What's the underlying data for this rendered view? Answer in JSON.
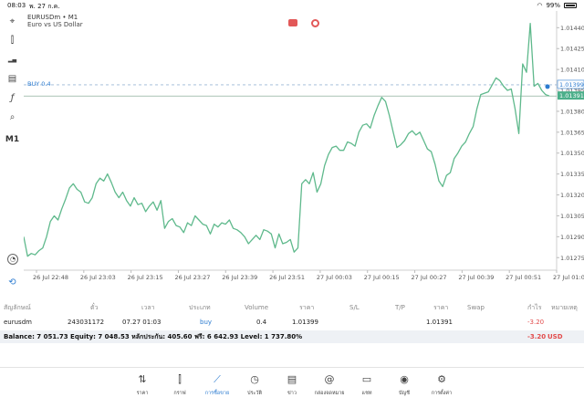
{
  "status": {
    "time": "08:03",
    "date": "พ. 27 ก.ค.",
    "battery": "99%"
  },
  "toolbar": [
    {
      "name": "crosshair-icon",
      "glyph": "⌖"
    },
    {
      "name": "candlestick-icon",
      "glyph": "⫿"
    },
    {
      "name": "indicators-icon",
      "glyph": "▂▄"
    },
    {
      "name": "objects-icon",
      "glyph": "▤"
    },
    {
      "name": "function-icon",
      "glyph": "ƒ"
    },
    {
      "name": "shapes-icon",
      "glyph": "⌕"
    },
    {
      "name": "timeframe-label",
      "glyph": "M1"
    }
  ],
  "chart": {
    "symbol": "EURUSDm • M1",
    "description": "Euro vs US Dollar",
    "buy_label": "BUY 0.4",
    "buy_price": "1.01399",
    "current_price": "1.01391",
    "colors": {
      "line": "#5fb98c",
      "buy": "#2b7bd0",
      "price": "#4caf8a"
    },
    "y_ticks": [
      "1.01440",
      "1.01425",
      "1.01410",
      "1.01395",
      "1.01380",
      "1.01365",
      "1.01350",
      "1.01335",
      "1.01320",
      "1.01305",
      "1.01290",
      "1.01275"
    ],
    "x_ticks": [
      "26 Jul 22:48",
      "26 Jul 23:03",
      "26 Jul 23:15",
      "26 Jul 23:27",
      "26 Jul 23:39",
      "26 Jul 23:51",
      "27 Jul 00:03",
      "27 Jul 00:15",
      "27 Jul 00:27",
      "27 Jul 00:39",
      "27 Jul 00:51",
      "27 Jul 01:03"
    ]
  },
  "chart_data": {
    "type": "line",
    "title": "EURUSDm • M1",
    "ylim": [
      1.01266,
      1.01452
    ],
    "xlabel": "",
    "ylabel": "",
    "values": [
      1.0129,
      1.01276,
      1.01278,
      1.01277,
      1.0128,
      1.01282,
      1.0129,
      1.01301,
      1.01305,
      1.01302,
      1.0131,
      1.01317,
      1.01325,
      1.01328,
      1.01324,
      1.01322,
      1.01315,
      1.01314,
      1.01318,
      1.01328,
      1.01332,
      1.0133,
      1.01335,
      1.01329,
      1.01322,
      1.01318,
      1.01322,
      1.01316,
      1.01312,
      1.01318,
      1.01313,
      1.01314,
      1.01308,
      1.01312,
      1.01315,
      1.01309,
      1.01316,
      1.01296,
      1.01301,
      1.01303,
      1.01298,
      1.01297,
      1.01293,
      1.013,
      1.01298,
      1.01305,
      1.01302,
      1.01299,
      1.01298,
      1.01292,
      1.01299,
      1.01297,
      1.013,
      1.01299,
      1.01302,
      1.01296,
      1.01295,
      1.01293,
      1.0129,
      1.01285,
      1.01288,
      1.01291,
      1.01288,
      1.01295,
      1.01294,
      1.01292,
      1.01282,
      1.01292,
      1.01285,
      1.01286,
      1.01288,
      1.01279,
      1.01282,
      1.01328,
      1.01331,
      1.01328,
      1.01336,
      1.01322,
      1.01328,
      1.01341,
      1.01349,
      1.01354,
      1.01355,
      1.01352,
      1.01352,
      1.01358,
      1.01357,
      1.01355,
      1.01365,
      1.0137,
      1.01371,
      1.01368,
      1.01377,
      1.01384,
      1.0139,
      1.01387,
      1.01377,
      1.01365,
      1.01354,
      1.01356,
      1.01359,
      1.01364,
      1.01366,
      1.01363,
      1.01365,
      1.01359,
      1.01353,
      1.01351,
      1.01342,
      1.0133,
      1.01326,
      1.01334,
      1.01336,
      1.01346,
      1.0135,
      1.01355,
      1.01358,
      1.01364,
      1.01369,
      1.01382,
      1.01392,
      1.01393,
      1.01394,
      1.01399,
      1.01404,
      1.01402,
      1.01398,
      1.01395,
      1.01396,
      1.01382,
      1.01364,
      1.01414,
      1.01408,
      1.01443,
      1.01398,
      1.014,
      1.01395,
      1.01392,
      1.01391
    ]
  },
  "table": {
    "headers": [
      "สัญลักษณ์",
      "ตั๋ว",
      "เวลา",
      "ประเภท",
      "Volume",
      "ราคา",
      "S/L",
      "T/P",
      "ราคา",
      "Swap",
      "กำไร",
      "หมายเหตุ"
    ],
    "row": {
      "symbol": "eurusdm",
      "ticket": "243031172",
      "time": "07.27 01:03",
      "type": "buy",
      "volume": "0.4",
      "open_price": "1.01399",
      "current_price": "1.01391",
      "profit": "-3.20"
    },
    "balance_text": "Balance: 7 051.73 Equity: 7 048.53 หลักประกัน: 405.60 ฟรี: 6 642.93 Level: 1 737.80%",
    "total_profit": "-3.20",
    "currency": "USD"
  },
  "nav": [
    {
      "name": "nav-quotes",
      "icon": "⇅",
      "label": "ราคา"
    },
    {
      "name": "nav-chart",
      "icon": "⫿",
      "label": "กราฟ"
    },
    {
      "name": "nav-trade",
      "icon": "⟋",
      "label": "การซื้อขาย"
    },
    {
      "name": "nav-history",
      "icon": "◷",
      "label": "ประวัติ"
    },
    {
      "name": "nav-news",
      "icon": "▤",
      "label": "ข่าว"
    },
    {
      "name": "nav-mailbox",
      "icon": "@",
      "label": "กล่องจดหมาย"
    },
    {
      "name": "nav-chat",
      "icon": "▭",
      "label": "แชท"
    },
    {
      "name": "nav-accounts",
      "icon": "◉",
      "label": "บัญชี"
    },
    {
      "name": "nav-settings",
      "icon": "⚙",
      "label": "การตั้งค่า"
    }
  ]
}
